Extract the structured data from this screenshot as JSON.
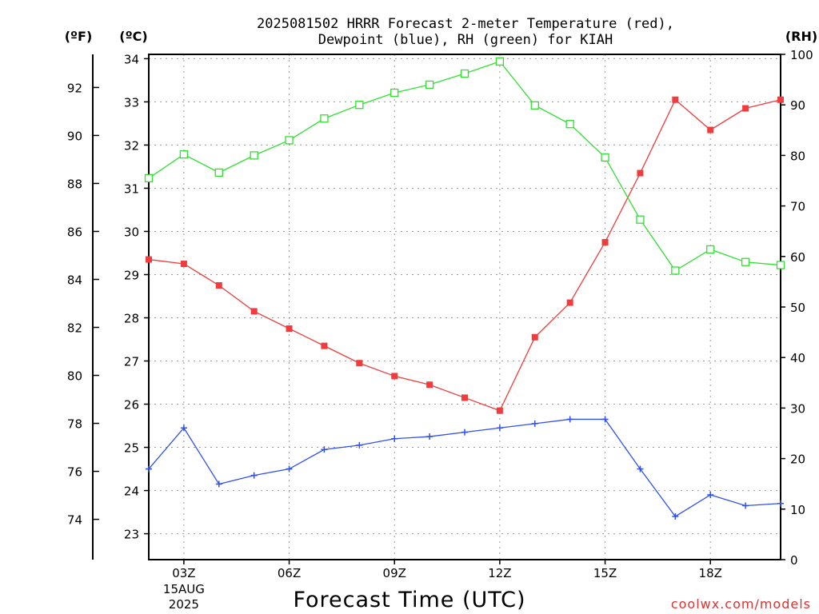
{
  "chart_data": {
    "type": "line",
    "title_line1": "2025081502 HRRR Forecast 2-meter Temperature (red),",
    "title_line2": "Dewpoint (blue), RH (green) for KIAH",
    "xlabel": "Forecast Time (UTC)",
    "credit": "coolwx.com/models",
    "unit_f": "(ºF)",
    "unit_c": "(ºC)",
    "unit_rh": "(RH)",
    "x_hours": [
      2,
      3,
      4,
      5,
      6,
      7,
      8,
      9,
      10,
      11,
      12,
      13,
      14,
      15,
      16,
      17,
      18,
      19,
      20
    ],
    "xlim": [
      2,
      20
    ],
    "x_ticks": [
      {
        "hour": 3,
        "label": "03Z",
        "date_line1": "15AUG",
        "date_line2": "2025"
      },
      {
        "hour": 6,
        "label": "06Z"
      },
      {
        "hour": 9,
        "label": "09Z"
      },
      {
        "hour": 12,
        "label": "12Z"
      },
      {
        "hour": 15,
        "label": "15Z"
      },
      {
        "hour": 18,
        "label": "18Z"
      }
    ],
    "y_celsius": {
      "lim": [
        22.4,
        34.1
      ],
      "ticks": [
        23,
        24,
        25,
        26,
        27,
        28,
        29,
        30,
        31,
        32,
        33,
        34
      ]
    },
    "y_fahrenheit": {
      "lim": [
        72.32,
        93.38
      ],
      "ticks": [
        74,
        76,
        78,
        80,
        82,
        84,
        86,
        88,
        90,
        92
      ]
    },
    "y_rh": {
      "lim": [
        0,
        100
      ],
      "ticks": [
        0,
        10,
        20,
        30,
        40,
        50,
        60,
        70,
        80,
        90,
        100
      ]
    },
    "series": [
      {
        "name": "Temperature",
        "axis": "celsius",
        "color": "#f03c3c",
        "marker": "filled-square",
        "values": [
          29.35,
          29.25,
          28.75,
          28.15,
          27.75,
          27.35,
          26.95,
          26.65,
          26.45,
          26.15,
          25.85,
          27.55,
          28.35,
          29.75,
          31.35,
          33.05,
          32.35,
          32.85,
          33.05
        ]
      },
      {
        "name": "Dewpoint",
        "axis": "celsius",
        "color": "#3050f0",
        "marker": "plus",
        "values": [
          24.5,
          25.45,
          24.15,
          24.35,
          24.5,
          24.95,
          25.05,
          25.2,
          25.25,
          25.35,
          25.45,
          25.55,
          25.65,
          25.65,
          24.5,
          23.4,
          23.9,
          23.65,
          23.7
        ]
      },
      {
        "name": "RH",
        "axis": "rh",
        "color": "#30e030",
        "marker": "open-square",
        "values": [
          75.5,
          80.2,
          76.6,
          80.0,
          83.0,
          87.3,
          90.0,
          92.4,
          94.0,
          96.2,
          98.6,
          89.9,
          86.2,
          79.6,
          67.3,
          57.2,
          61.4,
          58.9,
          58.3
        ]
      }
    ]
  }
}
